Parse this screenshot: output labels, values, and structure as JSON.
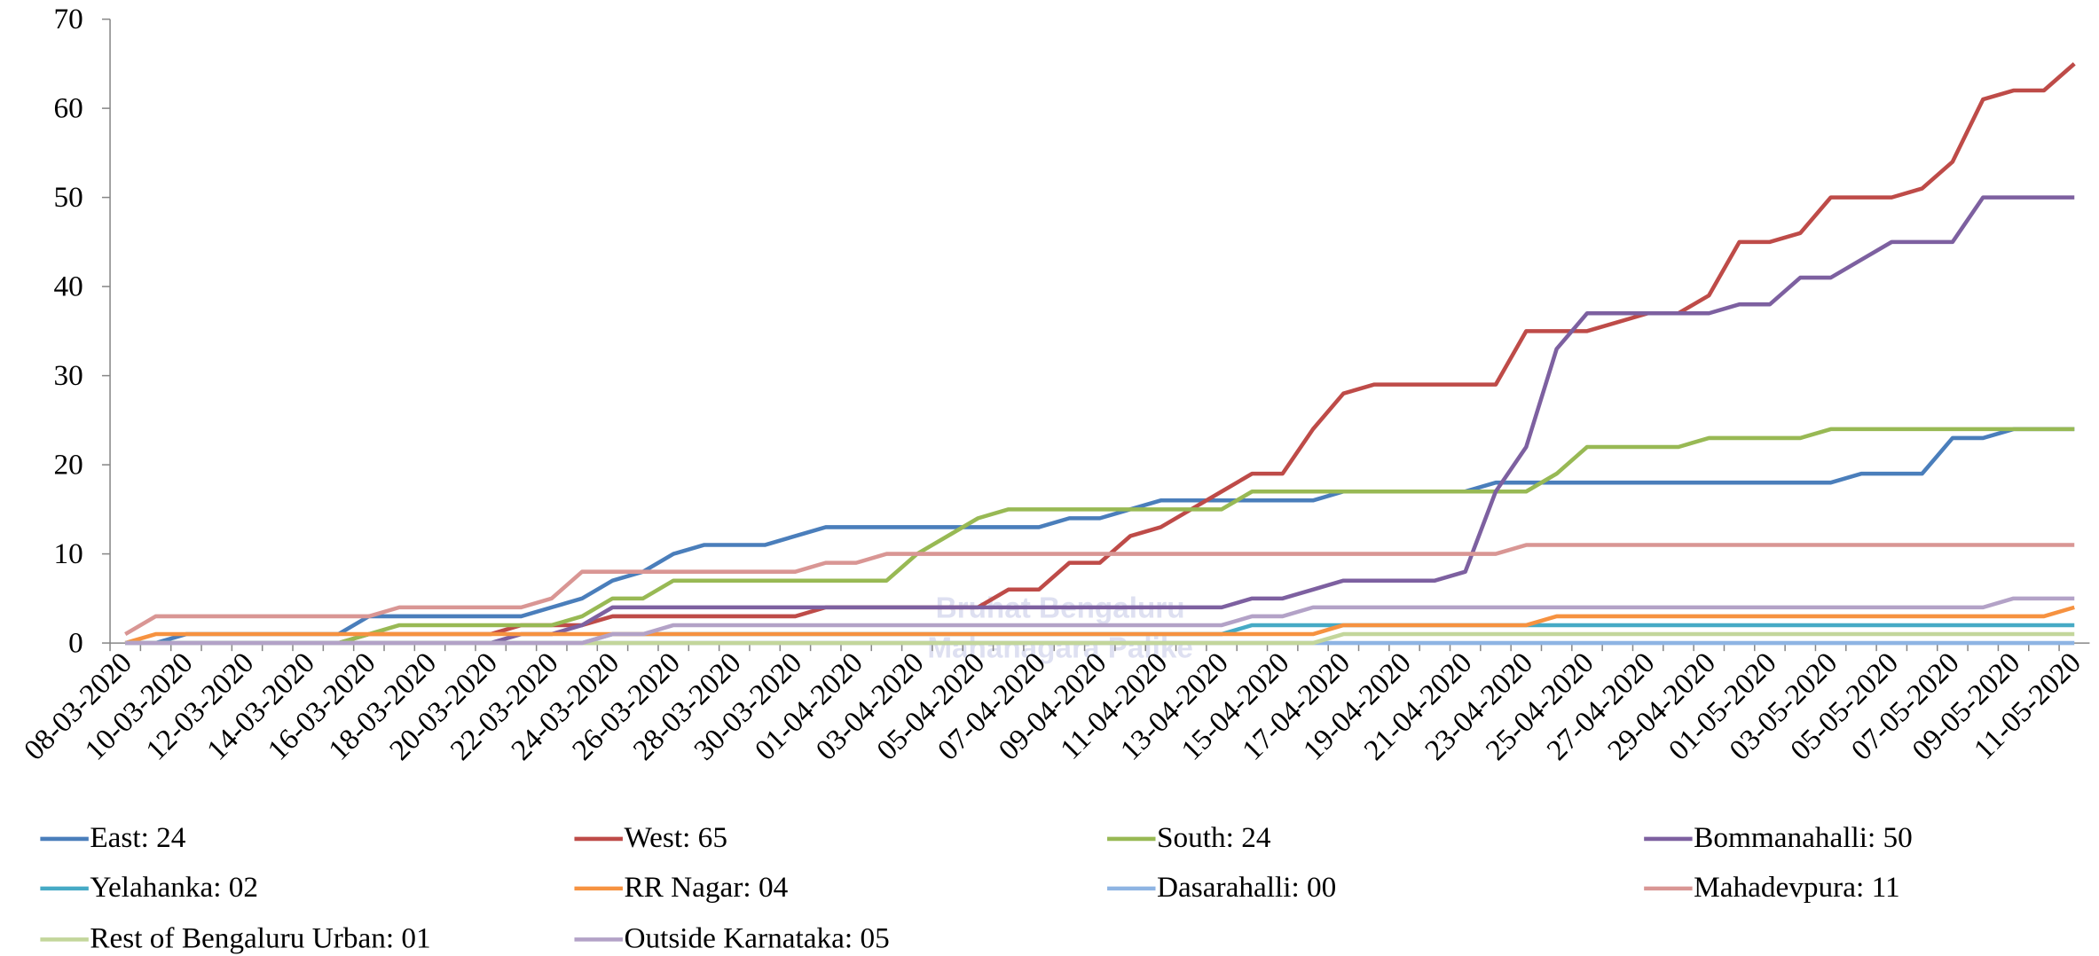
{
  "chart_data": {
    "type": "line",
    "categories": [
      "08-03-2020",
      null,
      "10-03-2020",
      null,
      "12-03-2020",
      null,
      "14-03-2020",
      null,
      "16-03-2020",
      null,
      "18-03-2020",
      null,
      "20-03-2020",
      null,
      "22-03-2020",
      null,
      "24-03-2020",
      null,
      "26-03-2020",
      null,
      "28-03-2020",
      null,
      "30-03-2020",
      null,
      "01-04-2020",
      null,
      "03-04-2020",
      null,
      "05-04-2020",
      null,
      "07-04-2020",
      null,
      "09-04-2020",
      null,
      "11-04-2020",
      null,
      "13-04-2020",
      null,
      "15-04-2020",
      null,
      "17-04-2020",
      null,
      "19-04-2020",
      null,
      "21-04-2020",
      null,
      "23-04-2020",
      null,
      "25-04-2020",
      null,
      "27-04-2020",
      null,
      "29-04-2020",
      null,
      "01-05-2020",
      null,
      "03-05-2020",
      null,
      "05-05-2020",
      null,
      "07-05-2020",
      null,
      "09-05-2020",
      null,
      "11-05-2020"
    ],
    "ylim": [
      0,
      70
    ],
    "yticks": [
      0,
      10,
      20,
      30,
      40,
      50,
      60,
      70
    ],
    "watermark": [
      "Bruhat Bengaluru",
      "Mahanagara Palike"
    ],
    "series": [
      {
        "name": "East: 24",
        "color": "#4a7ebb",
        "values": [
          0,
          0,
          1,
          1,
          1,
          1,
          1,
          1,
          3,
          3,
          3,
          3,
          3,
          3,
          4,
          5,
          7,
          8,
          10,
          11,
          11,
          11,
          12,
          13,
          13,
          13,
          13,
          13,
          13,
          13,
          13,
          14,
          14,
          15,
          16,
          16,
          16,
          16,
          16,
          16,
          17,
          17,
          17,
          17,
          17,
          18,
          18,
          18,
          18,
          18,
          18,
          18,
          18,
          18,
          18,
          18,
          18,
          19,
          19,
          19,
          23,
          23,
          24,
          24,
          24
        ]
      },
      {
        "name": "West: 65",
        "color": "#be4b48",
        "values": [
          0,
          0,
          0,
          0,
          0,
          0,
          0,
          0,
          1,
          1,
          1,
          1,
          1,
          2,
          2,
          2,
          3,
          3,
          3,
          3,
          3,
          3,
          3,
          4,
          4,
          4,
          4,
          4,
          4,
          6,
          6,
          9,
          9,
          12,
          13,
          15,
          17,
          19,
          19,
          24,
          28,
          29,
          29,
          29,
          29,
          29,
          35,
          35,
          35,
          36,
          37,
          37,
          39,
          45,
          45,
          46,
          50,
          50,
          50,
          51,
          54,
          61,
          62,
          62,
          65
        ]
      },
      {
        "name": "South: 24",
        "color": "#98b954",
        "values": [
          0,
          0,
          0,
          0,
          0,
          0,
          0,
          0,
          1,
          2,
          2,
          2,
          2,
          2,
          2,
          3,
          5,
          5,
          7,
          7,
          7,
          7,
          7,
          7,
          7,
          7,
          10,
          12,
          14,
          15,
          15,
          15,
          15,
          15,
          15,
          15,
          15,
          17,
          17,
          17,
          17,
          17,
          17,
          17,
          17,
          17,
          17,
          19,
          22,
          22,
          22,
          22,
          23,
          23,
          23,
          23,
          24,
          24,
          24,
          24,
          24,
          24,
          24,
          24,
          24
        ]
      },
      {
        "name": "Bommanahalli: 50",
        "color": "#7d60a0",
        "values": [
          0,
          0,
          0,
          0,
          0,
          0,
          0,
          0,
          0,
          0,
          0,
          0,
          0,
          1,
          1,
          2,
          4,
          4,
          4,
          4,
          4,
          4,
          4,
          4,
          4,
          4,
          4,
          4,
          4,
          4,
          4,
          4,
          4,
          4,
          4,
          4,
          4,
          5,
          5,
          6,
          7,
          7,
          7,
          7,
          8,
          17,
          22,
          33,
          37,
          37,
          37,
          37,
          37,
          38,
          38,
          41,
          41,
          43,
          45,
          45,
          45,
          50,
          50,
          50,
          50
        ]
      },
      {
        "name": "Yelahanka: 02",
        "color": "#46aac5",
        "values": [
          0,
          0,
          0,
          0,
          0,
          0,
          0,
          0,
          0,
          0,
          0,
          0,
          0,
          0,
          0,
          0,
          1,
          1,
          1,
          1,
          1,
          1,
          1,
          1,
          1,
          1,
          1,
          1,
          1,
          1,
          1,
          1,
          1,
          1,
          1,
          1,
          1,
          2,
          2,
          2,
          2,
          2,
          2,
          2,
          2,
          2,
          2,
          2,
          2,
          2,
          2,
          2,
          2,
          2,
          2,
          2,
          2,
          2,
          2,
          2,
          2,
          2,
          2,
          2,
          2
        ]
      },
      {
        "name": "RR Nagar: 04",
        "color": "#f69240",
        "values": [
          0,
          1,
          1,
          1,
          1,
          1,
          1,
          1,
          1,
          1,
          1,
          1,
          1,
          1,
          1,
          1,
          1,
          1,
          1,
          1,
          1,
          1,
          1,
          1,
          1,
          1,
          1,
          1,
          1,
          1,
          1,
          1,
          1,
          1,
          1,
          1,
          1,
          1,
          1,
          1,
          2,
          2,
          2,
          2,
          2,
          2,
          2,
          3,
          3,
          3,
          3,
          3,
          3,
          3,
          3,
          3,
          3,
          3,
          3,
          3,
          3,
          3,
          3,
          3,
          4
        ]
      },
      {
        "name": "Dasarahalli: 00",
        "color": "#8eb4e3",
        "values": [
          0,
          0,
          0,
          0,
          0,
          0,
          0,
          0,
          0,
          0,
          0,
          0,
          0,
          0,
          0,
          0,
          0,
          0,
          0,
          0,
          0,
          0,
          0,
          0,
          0,
          0,
          0,
          0,
          0,
          0,
          0,
          0,
          0,
          0,
          0,
          0,
          0,
          0,
          0,
          0,
          0,
          0,
          0,
          0,
          0,
          0,
          0,
          0,
          0,
          0,
          0,
          0,
          0,
          0,
          0,
          0,
          0,
          0,
          0,
          0,
          0,
          0,
          0,
          0,
          0
        ]
      },
      {
        "name": "Mahadevpura: 11",
        "color": "#d99694",
        "values": [
          1,
          3,
          3,
          3,
          3,
          3,
          3,
          3,
          3,
          4,
          4,
          4,
          4,
          4,
          5,
          8,
          8,
          8,
          8,
          8,
          8,
          8,
          8,
          9,
          9,
          10,
          10,
          10,
          10,
          10,
          10,
          10,
          10,
          10,
          10,
          10,
          10,
          10,
          10,
          10,
          10,
          10,
          10,
          10,
          10,
          10,
          11,
          11,
          11,
          11,
          11,
          11,
          11,
          11,
          11,
          11,
          11,
          11,
          11,
          11,
          11,
          11,
          11,
          11,
          11
        ]
      },
      {
        "name": "Rest of Bengaluru Urban: 01",
        "color": "#c3d69b",
        "values": [
          0,
          0,
          0,
          0,
          0,
          0,
          0,
          0,
          0,
          0,
          0,
          0,
          0,
          0,
          0,
          0,
          0,
          0,
          0,
          0,
          0,
          0,
          0,
          0,
          0,
          0,
          0,
          0,
          0,
          0,
          0,
          0,
          0,
          0,
          0,
          0,
          0,
          0,
          0,
          0,
          1,
          1,
          1,
          1,
          1,
          1,
          1,
          1,
          1,
          1,
          1,
          1,
          1,
          1,
          1,
          1,
          1,
          1,
          1,
          1,
          1,
          1,
          1,
          1,
          1
        ]
      },
      {
        "name": "Outside Karnataka: 05",
        "color": "#b3a2c7",
        "values": [
          0,
          0,
          0,
          0,
          0,
          0,
          0,
          0,
          0,
          0,
          0,
          0,
          0,
          0,
          0,
          0,
          1,
          1,
          2,
          2,
          2,
          2,
          2,
          2,
          2,
          2,
          2,
          2,
          2,
          2,
          2,
          2,
          2,
          2,
          2,
          2,
          2,
          3,
          3,
          4,
          4,
          4,
          4,
          4,
          4,
          4,
          4,
          4,
          4,
          4,
          4,
          4,
          4,
          4,
          4,
          4,
          4,
          4,
          4,
          4,
          4,
          4,
          5,
          5,
          5
        ]
      }
    ]
  }
}
